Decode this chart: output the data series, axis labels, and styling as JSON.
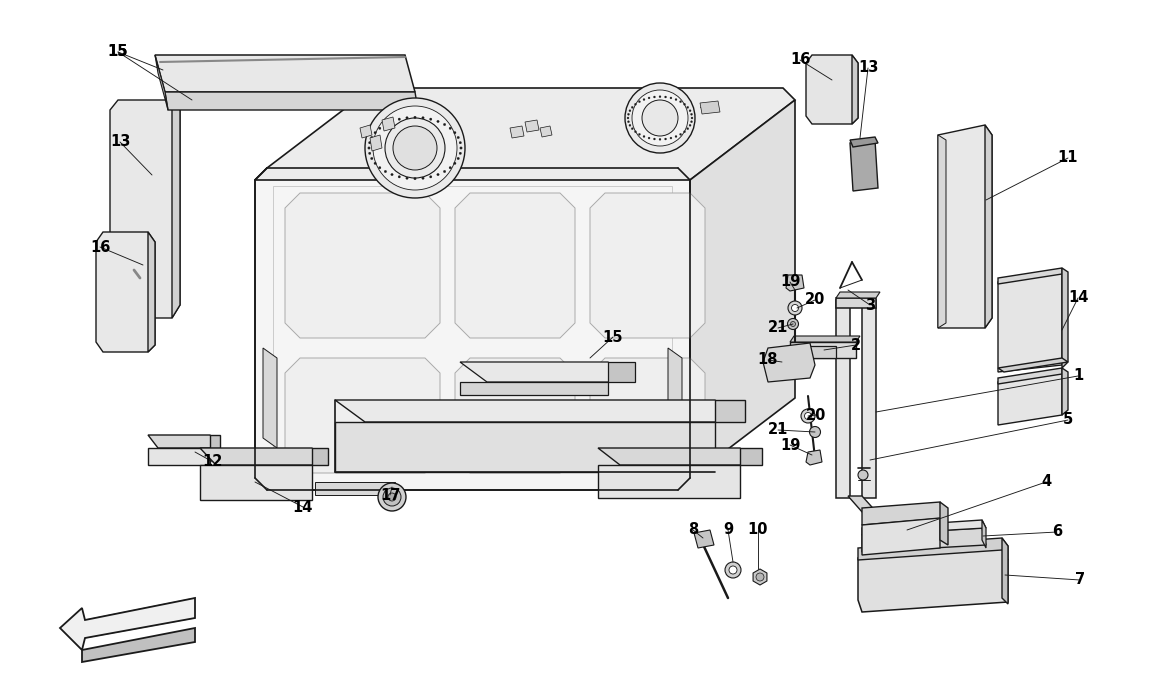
{
  "bg": "#ffffff",
  "lc": "#1a1a1a",
  "fl": "#f4f4f4",
  "fm": "#e0e0e0",
  "fd": "#c8c8c8",
  "fdd": "#aaaaaa",
  "lw_main": 1.0,
  "lw_thin": 0.6,
  "lw_thick": 1.4,
  "label_fs": 10.5
}
